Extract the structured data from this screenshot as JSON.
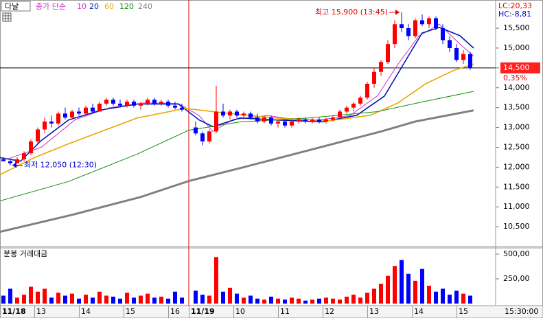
{
  "chart_data": [
    {
      "type": "candlestick",
      "title": "다날",
      "legend_label": "종가 단순",
      "up_color": "#ff0000",
      "down_color": "#0000ff",
      "xlim": [
        -0.5,
        71.7
      ],
      "ylim": [
        10035,
        16210
      ],
      "yticks": [
        {
          "value": 10500,
          "label": "10,500"
        },
        {
          "value": 11000,
          "label": "11,000"
        },
        {
          "value": 11500,
          "label": "11,500"
        },
        {
          "value": 12000,
          "label": "12,000"
        },
        {
          "value": 12500,
          "label": "12,500"
        },
        {
          "value": 13000,
          "label": "13,000"
        },
        {
          "value": 13500,
          "label": "13,500"
        },
        {
          "value": 14000,
          "label": "14,000"
        },
        {
          "value": 14500,
          "label": "14,500"
        },
        {
          "value": 15000,
          "label": "15,000"
        },
        {
          "value": 15500,
          "label": "15,500"
        }
      ],
      "x": [
        0,
        1,
        2,
        3,
        4,
        5,
        6,
        7,
        8,
        9,
        10,
        11,
        12,
        13,
        14,
        15,
        16,
        17,
        18,
        19,
        20,
        21,
        22,
        23,
        24,
        25,
        26,
        28,
        29,
        30,
        31,
        32,
        33,
        34,
        35,
        36,
        37,
        38,
        39,
        40,
        41,
        42,
        43,
        44,
        45,
        46,
        47,
        48,
        49,
        50,
        51,
        52,
        53,
        54,
        55,
        56,
        57,
        58,
        59,
        60,
        61,
        62,
        63,
        64,
        65,
        66,
        67,
        68
      ],
      "open": [
        12200,
        12150,
        12100,
        12200,
        12350,
        12650,
        12950,
        13150,
        13100,
        13350,
        13250,
        13400,
        13350,
        13500,
        13400,
        13600,
        13700,
        13600,
        13550,
        13650,
        13550,
        13600,
        13700,
        13600,
        13650,
        13550,
        13500,
        13000,
        12850,
        12650,
        12900,
        13400,
        13300,
        13400,
        13300,
        13350,
        13250,
        13150,
        13250,
        13100,
        13150,
        13050,
        13150,
        13200,
        13150,
        13200,
        13150,
        13200,
        13250,
        13400,
        13500,
        13600,
        13750,
        14100,
        14400,
        14650,
        15100,
        15600,
        15500,
        15300,
        15700,
        15600,
        15750,
        15500,
        15200,
        15000,
        14700,
        14850
      ],
      "high": [
        12250,
        12200,
        12250,
        12400,
        12700,
        13000,
        13250,
        13300,
        13400,
        13500,
        13450,
        13500,
        13550,
        13600,
        13650,
        13750,
        13750,
        13700,
        13700,
        13700,
        13650,
        13750,
        13750,
        13700,
        13700,
        13650,
        13600,
        13150,
        12900,
        12950,
        14050,
        13600,
        13450,
        13450,
        13400,
        13400,
        13350,
        13300,
        13300,
        13200,
        13200,
        13200,
        13250,
        13250,
        13250,
        13250,
        13250,
        13300,
        13450,
        13550,
        13650,
        13800,
        14150,
        14500,
        14700,
        15200,
        15700,
        15900,
        15600,
        15750,
        15850,
        15800,
        15800,
        15600,
        15300,
        15100,
        14950,
        14900
      ],
      "low": [
        12150,
        12050,
        12100,
        12150,
        12300,
        12600,
        12850,
        13000,
        13050,
        13200,
        13200,
        13300,
        13300,
        13350,
        13400,
        13550,
        13550,
        13500,
        13500,
        13500,
        13450,
        13550,
        13550,
        13550,
        13500,
        13450,
        13400,
        12800,
        12550,
        12600,
        12850,
        13250,
        13200,
        13250,
        13200,
        13200,
        13100,
        13100,
        13050,
        13000,
        13000,
        13000,
        13100,
        13100,
        13100,
        13100,
        13100,
        13150,
        13200,
        13350,
        13400,
        13550,
        13700,
        14000,
        14300,
        14600,
        15000,
        15400,
        15200,
        15250,
        15550,
        15500,
        15450,
        15100,
        14900,
        14650,
        14600,
        14450
      ],
      "close": [
        12150,
        12100,
        12200,
        12350,
        12650,
        12950,
        13150,
        13100,
        13350,
        13250,
        13400,
        13350,
        13500,
        13400,
        13600,
        13700,
        13600,
        13550,
        13650,
        13550,
        13600,
        13700,
        13600,
        13650,
        13550,
        13500,
        13450,
        12850,
        12650,
        12900,
        13400,
        13300,
        13400,
        13300,
        13350,
        13250,
        13150,
        13250,
        13100,
        13150,
        13050,
        13150,
        13200,
        13150,
        13200,
        13150,
        13200,
        13250,
        13400,
        13500,
        13600,
        13750,
        14100,
        14400,
        14650,
        15100,
        15600,
        15500,
        15300,
        15700,
        15600,
        15750,
        15500,
        15200,
        15000,
        14700,
        14850,
        14500
      ],
      "series": [
        {
          "name": "10",
          "color": "#d030c8",
          "line_width": 1,
          "x": [
            0.5,
            5.5,
            10.5,
            15.5,
            20.5,
            25.5,
            28.5,
            30.5,
            33.5,
            38.5,
            44.5,
            50.5,
            54.5,
            57.5,
            60.5,
            63.5,
            66.5,
            68.5
          ],
          "values": [
            12200,
            12500,
            13200,
            13500,
            13620,
            13600,
            13300,
            12900,
            13200,
            13300,
            13150,
            13300,
            13800,
            14600,
            15300,
            15600,
            15100,
            14800
          ]
        },
        {
          "name": "20",
          "color": "#0018b0",
          "line_width": 1.6,
          "x": [
            -0.5,
            2.5,
            5.5,
            9.5,
            14.5,
            19.5,
            25.5,
            28.5,
            30.5,
            34.5,
            39.5,
            46.5,
            51.5,
            55.5,
            58.5,
            61,
            63.5,
            66.5,
            68.5
          ],
          "values": [
            12240,
            12150,
            12670,
            13190,
            13450,
            13590,
            13590,
            13190,
            13020,
            13240,
            13190,
            13140,
            13310,
            13790,
            14660,
            15380,
            15520,
            15310,
            15000
          ]
        },
        {
          "name": "60",
          "color": "#e8a800",
          "line_width": 1.6,
          "x": [
            -0.5,
            4.5,
            9.5,
            19.5,
            26.5,
            32.5,
            39.5,
            47.5,
            53.5,
            57.5,
            61.5,
            65.5,
            68.5
          ],
          "values": [
            11810,
            12240,
            12590,
            13240,
            13480,
            13360,
            13240,
            13170,
            13310,
            13620,
            14100,
            14430,
            14600
          ]
        },
        {
          "name": "120",
          "color": "#109010",
          "line_width": 1,
          "x": [
            -0.5,
            9.5,
            19.5,
            27,
            34.5,
            44.5,
            54.5,
            61.5,
            68.5
          ],
          "values": [
            11150,
            11640,
            12330,
            12930,
            13140,
            13240,
            13400,
            13660,
            13910
          ]
        },
        {
          "name": "240",
          "color": "#808080",
          "line_width": 3,
          "x": [
            -0.5,
            10,
            20,
            27,
            35,
            45,
            55,
            60,
            68.5
          ],
          "values": [
            10370,
            10800,
            11250,
            11650,
            12000,
            12450,
            12900,
            13150,
            13430
          ]
        }
      ],
      "annotations": [
        {
          "text": "최고 15,900 (13:45)",
          "x": 58,
          "value": 15900,
          "color": "#e00000",
          "side": "left"
        },
        {
          "text": "최저 12,050 (12:30)",
          "x": 1,
          "value": 12050,
          "color": "#0000d0",
          "side": "right"
        }
      ],
      "lc_label": "LC:20,33",
      "hc_label": "HC:-8,81",
      "last_price": 14500,
      "last_price_label": "14,500",
      "change": 0.35,
      "change_label": "0,35%"
    },
    {
      "type": "bar",
      "title": "분봉 거래대금",
      "time_label": "15:30:00",
      "xlim": [
        -0.5,
        71.7
      ],
      "ylim": [
        0,
        555
      ],
      "yticks": [
        {
          "value": 250,
          "label": "250,00"
        },
        {
          "value": 500,
          "label": "500,00"
        }
      ],
      "xticks": [
        {
          "value": -0.5,
          "label": "11/18"
        },
        {
          "value": 4.5,
          "label": "13"
        },
        {
          "value": 11,
          "label": "14"
        },
        {
          "value": 17.5,
          "label": "15"
        },
        {
          "value": 24,
          "label": "16"
        },
        {
          "value": 27,
          "label": "11/19"
        },
        {
          "value": 33.5,
          "label": "10"
        },
        {
          "value": 40,
          "label": "11"
        },
        {
          "value": 46.5,
          "label": "12"
        },
        {
          "value": 53,
          "label": "13"
        },
        {
          "value": 59.5,
          "label": "14"
        },
        {
          "value": 66,
          "label": "15"
        }
      ],
      "x": [
        0,
        1,
        2,
        3,
        4,
        5,
        6,
        7,
        8,
        9,
        10,
        11,
        12,
        13,
        14,
        15,
        16,
        17,
        18,
        19,
        20,
        21,
        22,
        23,
        24,
        25,
        26,
        28,
        29,
        30,
        31,
        32,
        33,
        34,
        35,
        36,
        37,
        38,
        39,
        40,
        41,
        42,
        43,
        44,
        45,
        46,
        47,
        48,
        49,
        50,
        51,
        52,
        53,
        54,
        55,
        56,
        57,
        58,
        59,
        60,
        61,
        62,
        63,
        64,
        65,
        66,
        67,
        68
      ],
      "values": [
        80,
        150,
        60,
        90,
        170,
        120,
        150,
        60,
        110,
        80,
        100,
        50,
        90,
        60,
        120,
        80,
        70,
        50,
        110,
        60,
        80,
        100,
        60,
        70,
        50,
        120,
        60,
        130,
        90,
        80,
        470,
        120,
        160,
        100,
        60,
        80,
        50,
        40,
        70,
        50,
        40,
        60,
        50,
        30,
        40,
        50,
        60,
        50,
        40,
        70,
        90,
        60,
        110,
        150,
        200,
        280,
        380,
        440,
        300,
        230,
        350,
        180,
        120,
        150,
        90,
        130,
        100,
        80
      ]
    }
  ]
}
